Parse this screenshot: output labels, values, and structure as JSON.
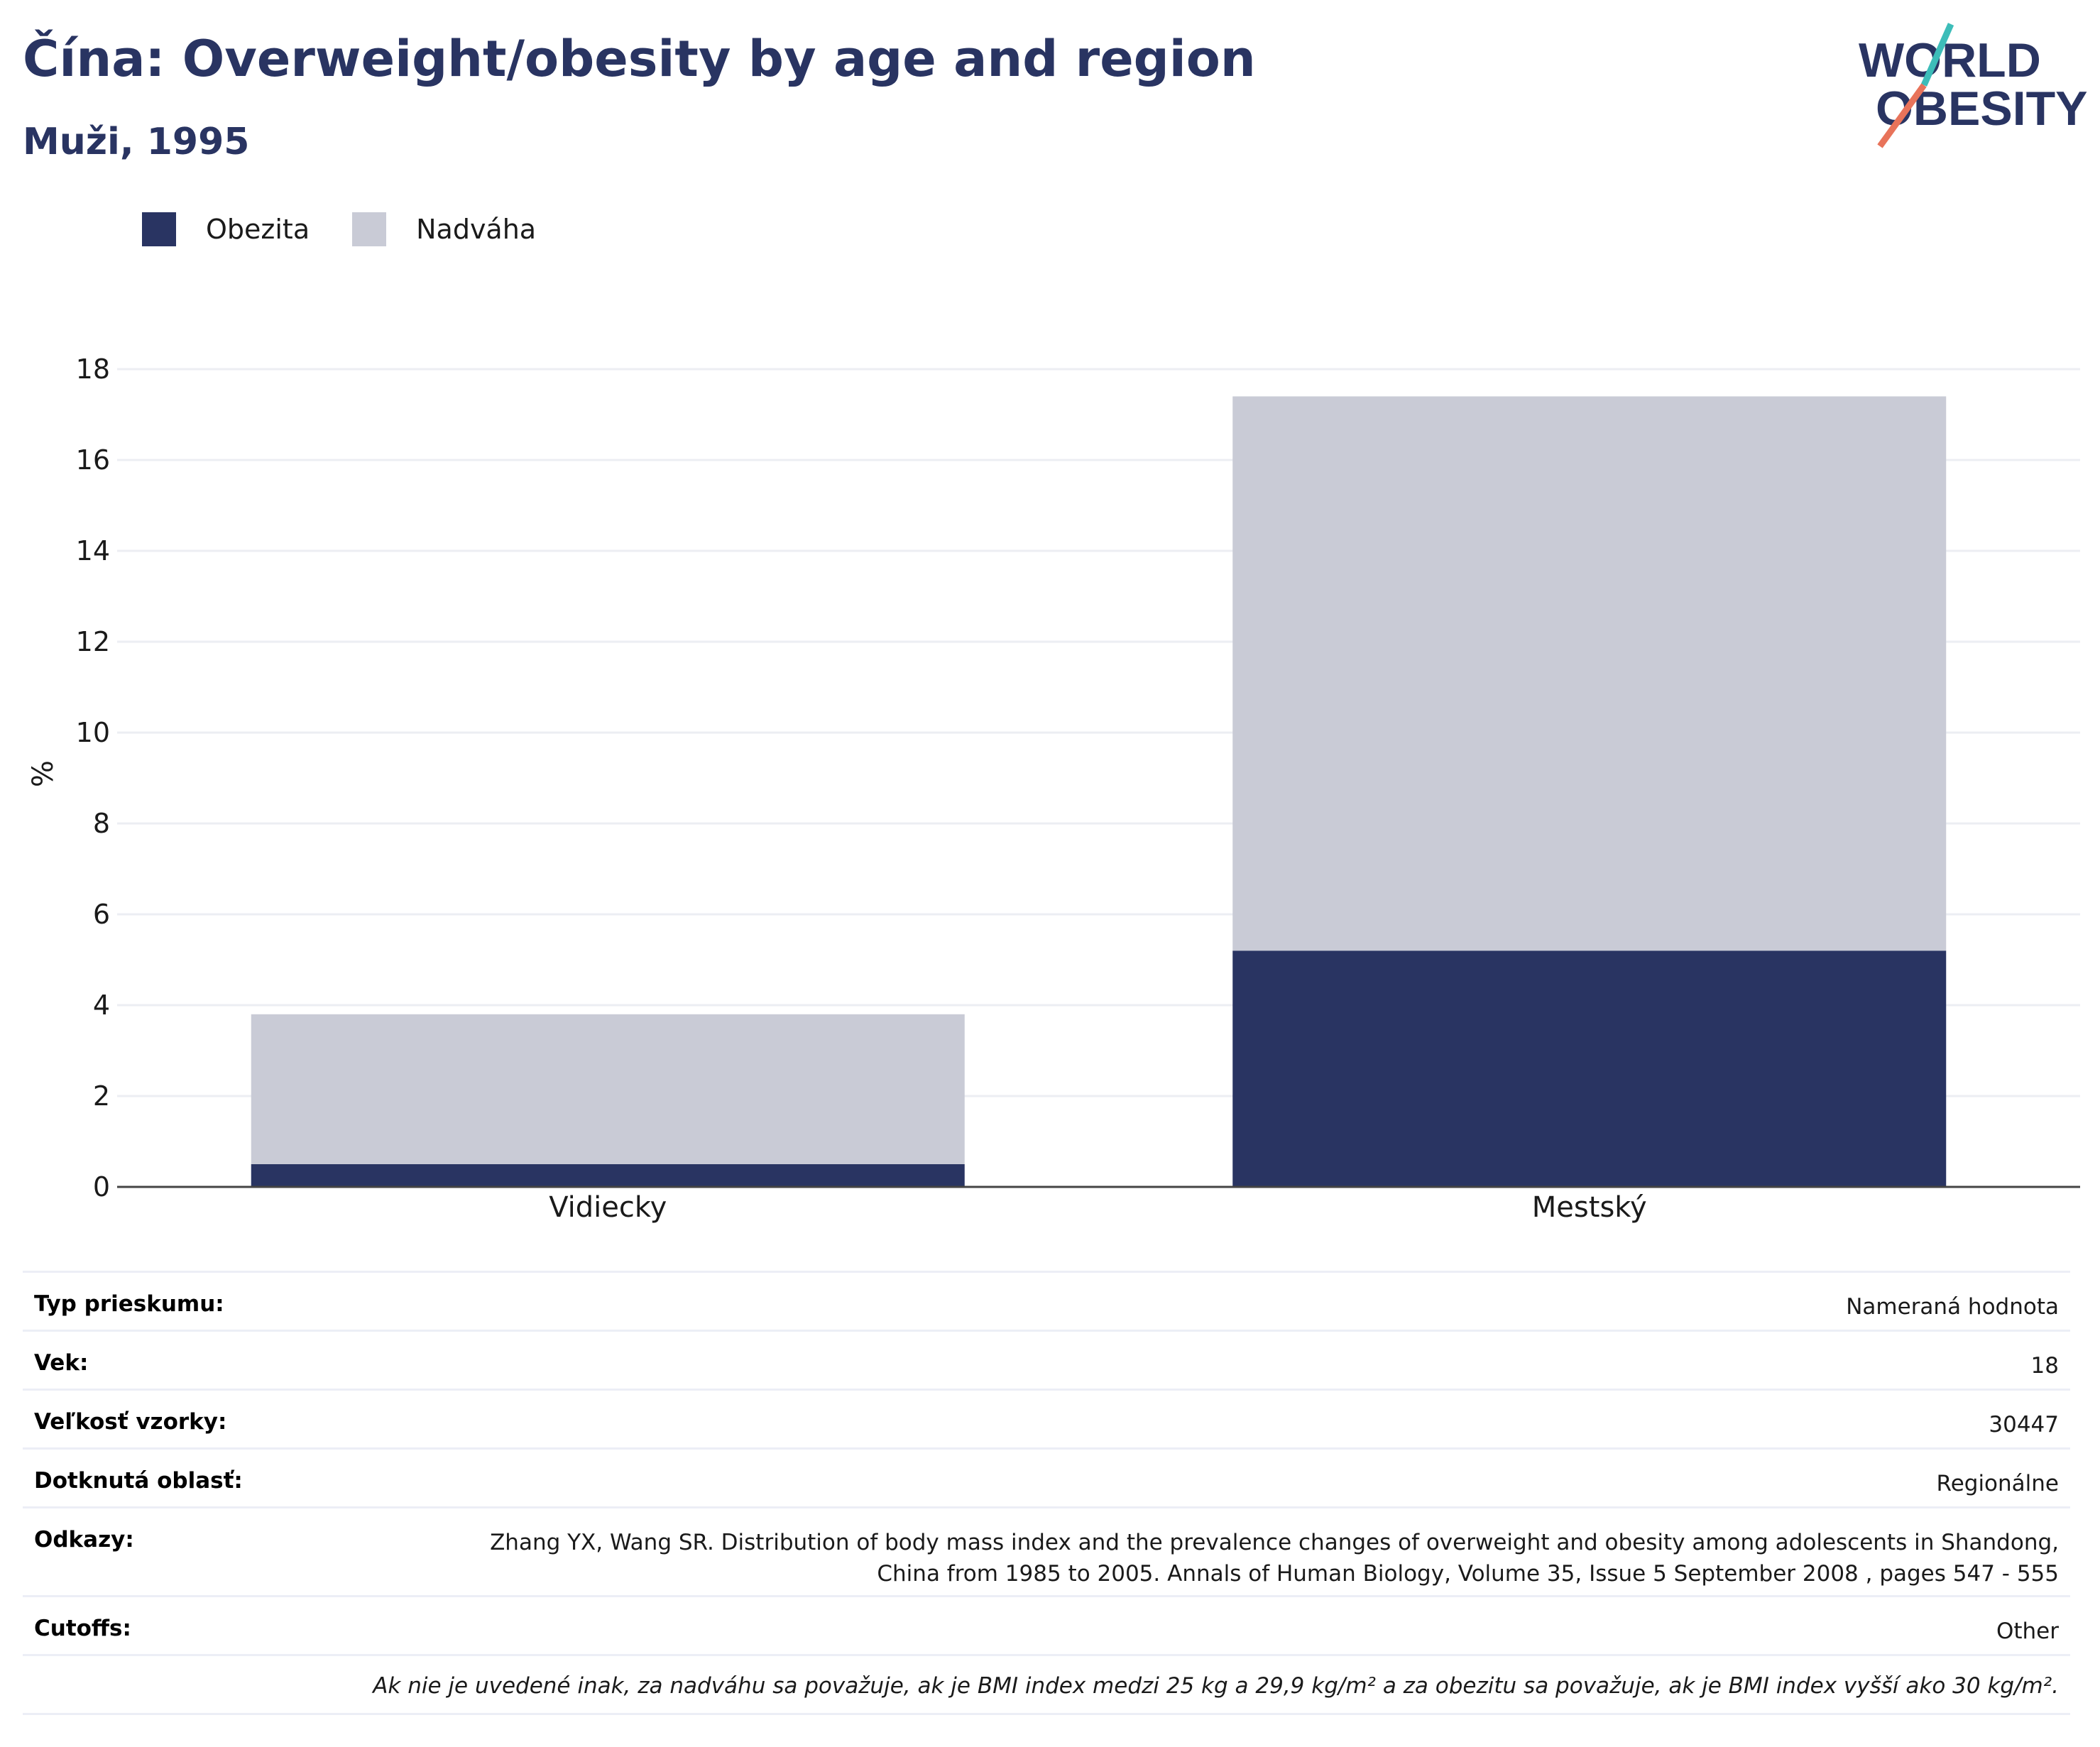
{
  "header": {
    "title": "Čína: Overweight/obesity by age and region",
    "subtitle": "Muži, 1995"
  },
  "logo": {
    "line1": "WORLD",
    "line2": "OBESITY"
  },
  "colors": {
    "obesity": "#293462",
    "overweight": "#c9cbd6",
    "title": "#293462",
    "logo_teal": "#3dbdb9",
    "logo_coral": "#e8735a"
  },
  "chart_data": {
    "type": "bar",
    "stacked": true,
    "categories": [
      "Vidiecky",
      "Mestský"
    ],
    "series": [
      {
        "name": "Obezita",
        "values": [
          0.5,
          5.2
        ]
      },
      {
        "name": "Nadváha",
        "values": [
          3.3,
          12.2
        ]
      }
    ],
    "xlabel": "",
    "ylabel": "%",
    "ylim": [
      0,
      18
    ],
    "yticks": [
      0,
      2,
      4,
      6,
      8,
      10,
      12,
      14,
      16,
      18
    ],
    "grid": true,
    "legend": "top-left"
  },
  "info": {
    "rows": [
      {
        "label": "Typ prieskumu:",
        "value": "Nameraná hodnota"
      },
      {
        "label": "Vek:",
        "value": "18"
      },
      {
        "label": "Veľkosť vzorky:",
        "value": "30447"
      },
      {
        "label": "Dotknutá oblasť:",
        "value": "Regionálne"
      }
    ],
    "references": {
      "label": "Odkazy:",
      "value": "Zhang YX, Wang SR. Distribution of body mass index and the prevalence changes of overweight and obesity among adolescents in Shandong, China from 1985 to 2005. Annals of Human Biology, Volume 35, Issue 5 September 2008 , pages 547 - 555"
    },
    "cutoffs": {
      "label": "Cutoffs:",
      "value": "Other"
    },
    "note": "Ak nie je uvedené inak, za nadváhu sa považuje, ak je BMI index medzi 25 kg a 29,9 kg/m² a za obezitu sa považuje, ak je BMI index vyšší ako 30 kg/m²."
  }
}
